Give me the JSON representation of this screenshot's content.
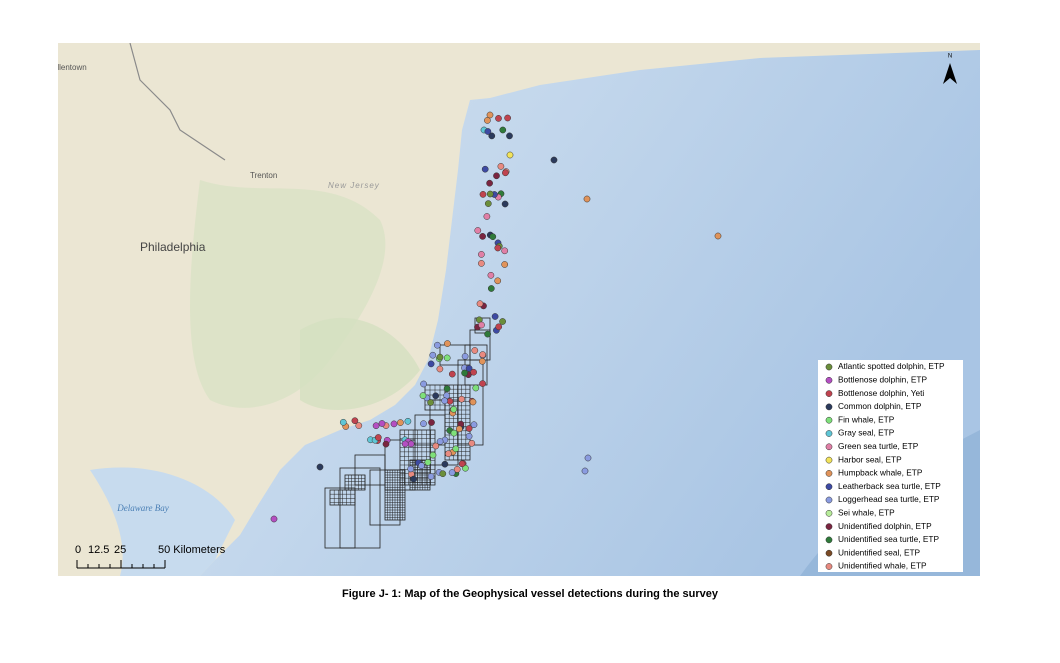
{
  "map": {
    "places": [
      "Allentown",
      "Trenton",
      "New Jersey",
      "Philadelphia",
      "Delaware Bay"
    ],
    "north": "N",
    "scale_bar": [
      "0",
      "12.5",
      "25",
      "50 Kilometers"
    ],
    "legend": [
      {
        "label": "Atlantic spotted dolphin, ETP",
        "color": "#6b8e3a"
      },
      {
        "label": "Bottlenose dolphin, ETP",
        "color": "#b44fc2"
      },
      {
        "label": "Bottlenose dolphin, Yeti",
        "color": "#c0434f"
      },
      {
        "label": "Common dolphin, ETP",
        "color": "#2b3a5c"
      },
      {
        "label": "Fin whale, ETP",
        "color": "#7ee07a"
      },
      {
        "label": "Gray seal, ETP",
        "color": "#5fc6d6"
      },
      {
        "label": "Green sea turtle, ETP",
        "color": "#e07fa6"
      },
      {
        "label": "Harbor seal, ETP",
        "color": "#f2e35a"
      },
      {
        "label": "Humpback whale, ETP",
        "color": "#e0935a"
      },
      {
        "label": "Leatherback sea turtle, ETP",
        "color": "#3d4aa3"
      },
      {
        "label": "Loggerhead sea turtle, ETP",
        "color": "#8a9be0"
      },
      {
        "label": "Sei whale, ETP",
        "color": "#b7ec9a"
      },
      {
        "label": "Unidentified dolphin, ETP",
        "color": "#7a2540"
      },
      {
        "label": "Unidentified sea turtle, ETP",
        "color": "#2f7a3a"
      },
      {
        "label": "Unidentified seal, ETP",
        "color": "#7a4a25"
      },
      {
        "label": "Unidentified whale, ETP",
        "color": "#e88a80"
      }
    ]
  },
  "caption": "Figure J- 1: Map of the Geophysical vessel detections during the survey"
}
